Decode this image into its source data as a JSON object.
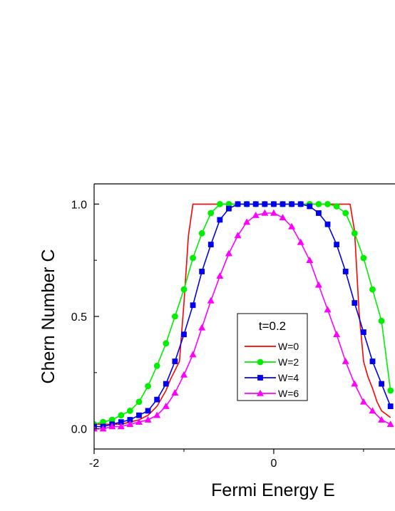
{
  "chart_data": {
    "type": "line",
    "title": "",
    "xlabel": "Fermi Energy E",
    "ylabel": "Chern Number C",
    "xlim": [
      -2.0,
      1.35
    ],
    "ylim": [
      -0.09,
      1.09
    ],
    "xticks": [
      -2,
      0
    ],
    "xtick_labels": [
      "-2",
      "0"
    ],
    "yticks": [
      0.0,
      0.5,
      1.0
    ],
    "ytick_labels": [
      "0.0",
      "0.5",
      "1.0"
    ],
    "legend": {
      "title": "t=0.2",
      "placement": "center"
    },
    "grid": false,
    "series": [
      {
        "name": "W=0",
        "color": "#ff0000",
        "marker": "none",
        "x": [
          -2.0,
          -1.9,
          -1.8,
          -1.7,
          -1.6,
          -1.5,
          -1.4,
          -1.3,
          -1.2,
          -1.15,
          -1.1,
          -1.05,
          -1.0,
          -0.95,
          -0.9,
          -0.85,
          0.0,
          0.85,
          0.9,
          0.95,
          1.0,
          1.05,
          1.1,
          1.15,
          1.2,
          1.3
        ],
        "values": [
          0.02,
          0.02,
          0.02,
          0.02,
          0.03,
          0.04,
          0.06,
          0.1,
          0.17,
          0.22,
          0.26,
          0.3,
          0.56,
          0.86,
          1.0,
          1.0,
          1.0,
          1.0,
          0.88,
          0.52,
          0.3,
          0.23,
          0.18,
          0.12,
          0.08,
          0.05
        ]
      },
      {
        "name": "W=2",
        "color": "#00ee00",
        "marker": "circle",
        "x": [
          -2.0,
          -1.9,
          -1.8,
          -1.7,
          -1.6,
          -1.5,
          -1.4,
          -1.3,
          -1.2,
          -1.1,
          -1.0,
          -0.9,
          -0.8,
          -0.7,
          -0.6,
          -0.5,
          -0.4,
          -0.3,
          -0.2,
          -0.1,
          0.0,
          0.1,
          0.2,
          0.3,
          0.4,
          0.5,
          0.6,
          0.7,
          0.8,
          0.9,
          1.0,
          1.1,
          1.2,
          1.3
        ],
        "values": [
          0.02,
          0.03,
          0.04,
          0.06,
          0.08,
          0.12,
          0.19,
          0.28,
          0.38,
          0.5,
          0.62,
          0.76,
          0.87,
          0.96,
          1.0,
          1.0,
          1.0,
          1.0,
          1.0,
          1.0,
          1.0,
          1.0,
          1.0,
          1.0,
          1.0,
          1.0,
          1.0,
          0.99,
          0.96,
          0.87,
          0.76,
          0.62,
          0.48,
          0.17
        ]
      },
      {
        "name": "W=4",
        "color": "#0000ee",
        "marker": "square",
        "x": [
          -2.0,
          -1.9,
          -1.8,
          -1.7,
          -1.6,
          -1.5,
          -1.4,
          -1.3,
          -1.2,
          -1.1,
          -1.0,
          -0.9,
          -0.8,
          -0.7,
          -0.6,
          -0.5,
          -0.4,
          -0.3,
          -0.2,
          -0.1,
          0.0,
          0.1,
          0.2,
          0.3,
          0.4,
          0.5,
          0.6,
          0.7,
          0.8,
          0.9,
          1.0,
          1.1,
          1.2,
          1.3
        ],
        "values": [
          0.01,
          0.01,
          0.02,
          0.03,
          0.04,
          0.06,
          0.08,
          0.13,
          0.2,
          0.3,
          0.42,
          0.55,
          0.7,
          0.82,
          0.93,
          0.98,
          1.0,
          1.0,
          1.0,
          1.0,
          1.0,
          1.0,
          1.0,
          1.0,
          0.99,
          0.96,
          0.91,
          0.82,
          0.7,
          0.56,
          0.43,
          0.3,
          0.2,
          0.1
        ]
      },
      {
        "name": "W=6",
        "color": "#ff00ff",
        "marker": "triangle",
        "x": [
          -2.0,
          -1.9,
          -1.8,
          -1.7,
          -1.6,
          -1.5,
          -1.4,
          -1.3,
          -1.2,
          -1.1,
          -1.0,
          -0.9,
          -0.8,
          -0.7,
          -0.6,
          -0.5,
          -0.4,
          -0.3,
          -0.2,
          -0.1,
          0.0,
          0.1,
          0.2,
          0.3,
          0.4,
          0.5,
          0.6,
          0.7,
          0.8,
          0.9,
          1.0,
          1.1,
          1.2,
          1.3
        ],
        "values": [
          0.0,
          0.0,
          0.01,
          0.01,
          0.02,
          0.03,
          0.04,
          0.06,
          0.1,
          0.16,
          0.24,
          0.33,
          0.45,
          0.57,
          0.68,
          0.78,
          0.86,
          0.92,
          0.95,
          0.96,
          0.96,
          0.94,
          0.9,
          0.83,
          0.75,
          0.64,
          0.53,
          0.42,
          0.3,
          0.2,
          0.12,
          0.08,
          0.04,
          0.02
        ]
      }
    ]
  }
}
